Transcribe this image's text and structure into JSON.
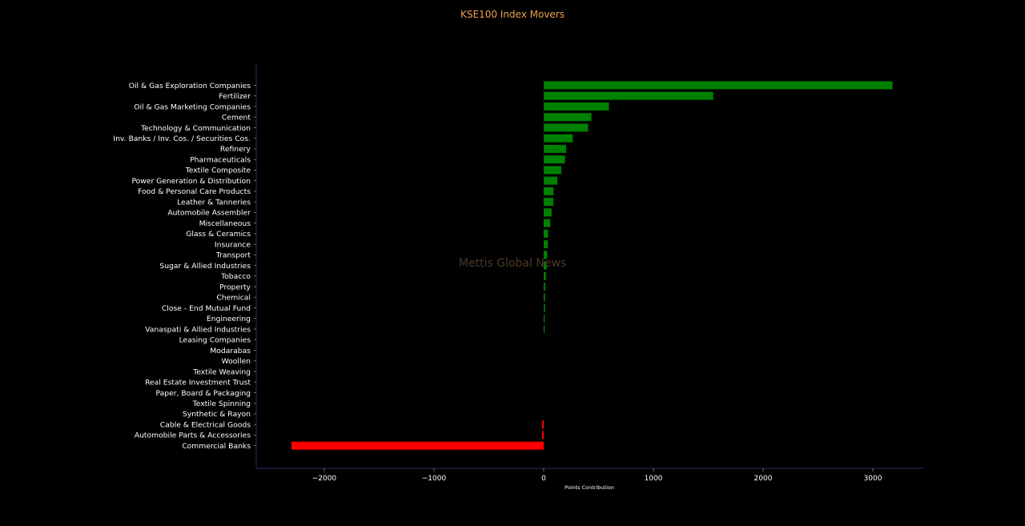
{
  "chart_data": {
    "type": "bar",
    "orientation": "horizontal",
    "title": "KSE100 Index Movers",
    "xlabel": "Points Contribution",
    "ylabel": "",
    "xlim": [
      -2620,
      3460
    ],
    "xticks": [
      -2000,
      -1000,
      0,
      1000,
      2000,
      3000
    ],
    "xtick_labels": [
      "−2000",
      "−1000",
      "0",
      "1000",
      "2000",
      "3000"
    ],
    "watermark": "Mettis Global News",
    "positive_color": "#008000",
    "negative_color": "#ff0000",
    "categories": [
      "Oil & Gas Exploration Companies",
      "Fertilizer",
      "Oil & Gas Marketing Companies",
      "Cement",
      "Technology & Communication",
      "Inv. Banks / Inv. Cos. / Securities Cos.",
      "Refinery",
      "Pharmaceuticals",
      "Textile Composite",
      "Power Generation & Distribution",
      "Food & Personal Care Products",
      "Leather & Tanneries",
      "Automobile Assembler",
      "Miscellaneous",
      "Glass & Ceramics",
      "Insurance",
      "Transport",
      "Sugar & Allied Industries",
      "Tobacco",
      "Property",
      "Chemical",
      "Close - End Mutual Fund",
      "Engineering",
      "Vanaspati & Allied Industries",
      "Leasing Companies",
      "Modarabas",
      "Woollen",
      "Textile Weaving",
      "Real Estate Investment Trust",
      "Paper, Board & Packaging",
      "Textile Spinning",
      "Synthetic & Rayon",
      "Cable & Electrical Goods",
      "Automobile Parts & Accessories",
      "Commercial Banks"
    ],
    "values": [
      3180,
      1545,
      595,
      435,
      405,
      265,
      205,
      195,
      160,
      125,
      90,
      88,
      72,
      60,
      40,
      38,
      32,
      28,
      20,
      14,
      12,
      12,
      5,
      4,
      0,
      0,
      0,
      0,
      0,
      0,
      0,
      0,
      -15,
      -15,
      -2300
    ]
  }
}
